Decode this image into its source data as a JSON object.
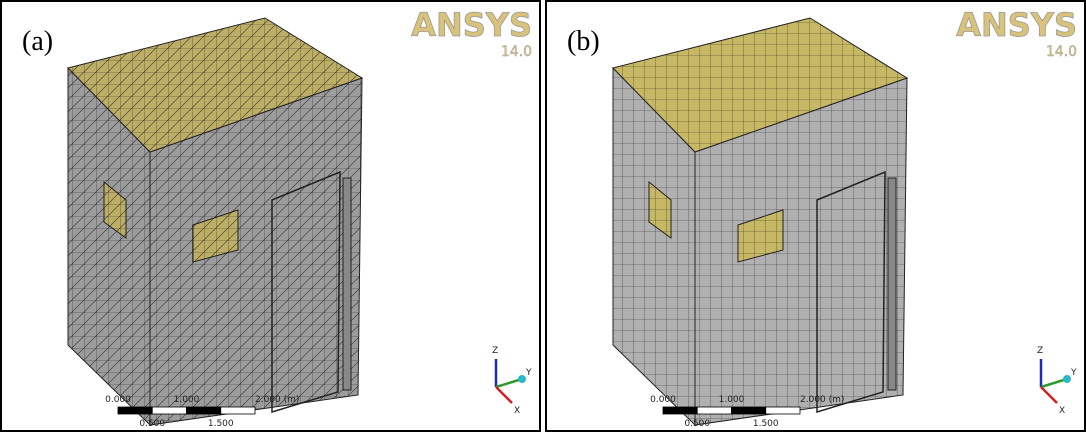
{
  "panels": [
    {
      "label": "(a)",
      "logo": "ANSYS",
      "version": "14.0",
      "scale": {
        "top": [
          "0.000",
          "1.000",
          "2.000 (m)"
        ],
        "bottom": [
          "0.500",
          "1.500"
        ]
      },
      "axes": {
        "z": "Z",
        "y": "Y",
        "x": "X"
      }
    },
    {
      "label": "(b)",
      "logo": "ANSYS",
      "version": "14.0",
      "scale": {
        "top": [
          "0.000",
          "1.000",
          "2.000 (m)"
        ],
        "bottom": [
          "0.500",
          "1.500"
        ]
      },
      "axes": {
        "z": "Z",
        "y": "Y",
        "x": "X"
      }
    }
  ]
}
